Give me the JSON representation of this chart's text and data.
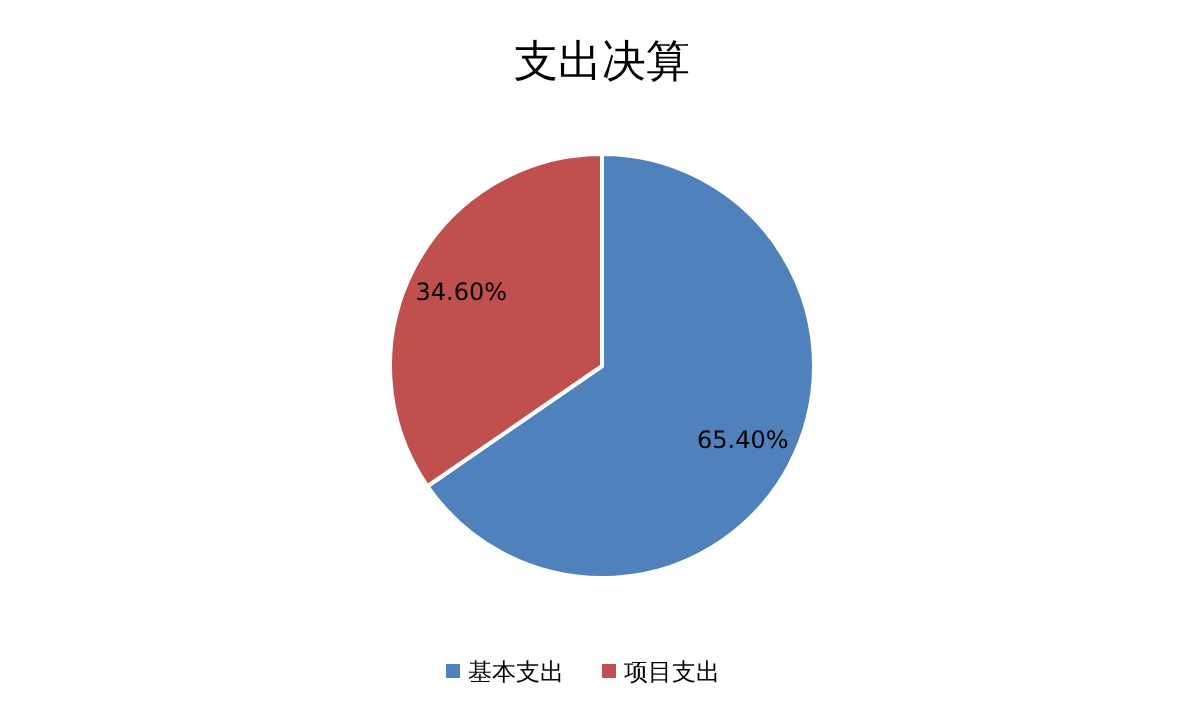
{
  "chart_data": {
    "type": "pie",
    "title": "支出决算",
    "categories": [
      "基本支出",
      "项目支出"
    ],
    "values": [
      65.4,
      34.6
    ],
    "colors": [
      "#4f81bd",
      "#c0504d"
    ],
    "value_labels": [
      "65.40%",
      "34.60%"
    ],
    "legend": "bottom"
  }
}
